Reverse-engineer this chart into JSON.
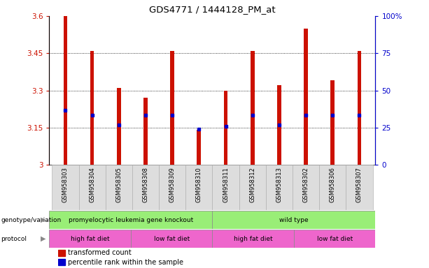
{
  "title": "GDS4771 / 1444128_PM_at",
  "samples": [
    "GSM958303",
    "GSM958304",
    "GSM958305",
    "GSM958308",
    "GSM958309",
    "GSM958310",
    "GSM958311",
    "GSM958312",
    "GSM958313",
    "GSM958302",
    "GSM958306",
    "GSM958307"
  ],
  "bar_values": [
    3.6,
    3.46,
    3.31,
    3.27,
    3.46,
    3.14,
    3.3,
    3.46,
    3.32,
    3.55,
    3.34,
    3.46
  ],
  "blue_marker_values": [
    3.22,
    3.2,
    3.16,
    3.2,
    3.2,
    3.145,
    3.155,
    3.2,
    3.16,
    3.2,
    3.2,
    3.2
  ],
  "ymin": 3.0,
  "ymax": 3.6,
  "yticks": [
    3.0,
    3.15,
    3.3,
    3.45,
    3.6
  ],
  "ytick_labels": [
    "3",
    "3.15",
    "3.3",
    "3.45",
    "3.6"
  ],
  "right_yticks": [
    0,
    25,
    50,
    75,
    100
  ],
  "right_ytick_labels": [
    "0",
    "25",
    "50",
    "75",
    "100%"
  ],
  "bar_color": "#cc1100",
  "blue_marker_color": "#0000cc",
  "bar_width": 0.15,
  "genotype_label_left": "promyelocytic leukemia gene knockout",
  "genotype_label_right": "wild type",
  "genotype_color_left": "#99ee77",
  "genotype_color_right": "#99ee77",
  "protocol_labels": [
    "high fat diet",
    "low fat diet",
    "high fat diet",
    "low fat diet"
  ],
  "protocol_color": "#ee66cc",
  "protocol_starts": [
    0,
    3,
    6,
    9
  ],
  "protocol_ends": [
    3,
    6,
    9,
    12
  ]
}
